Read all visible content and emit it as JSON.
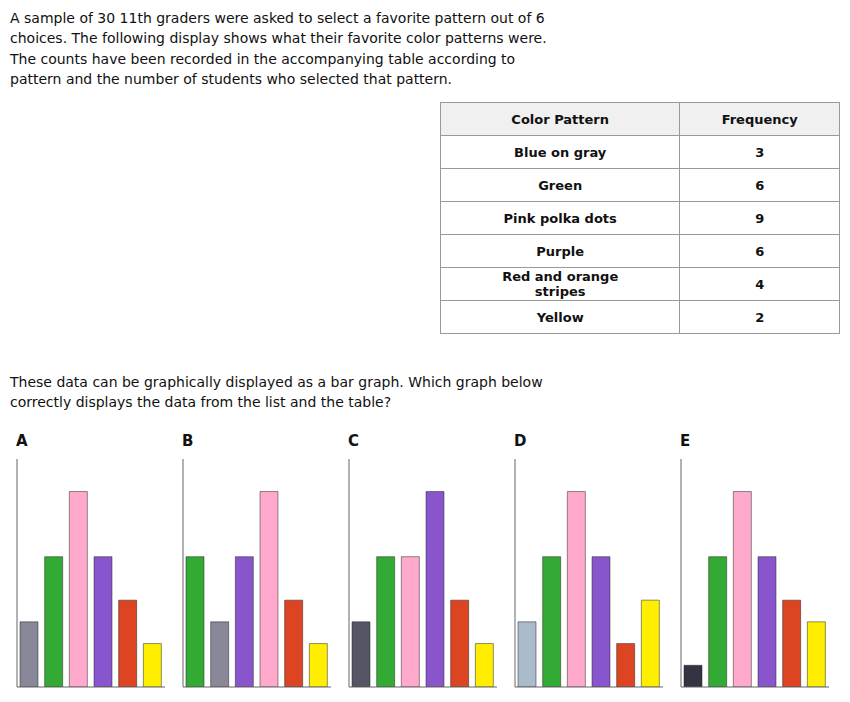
{
  "title": "A sample of 30 11th graders were asked to select a favorite pattern out of 6\nchoices. The following display shows what their favorite color patterns were.\nThe counts have been recorded in the accompanying table according to\npattern and the number of students who selected that pattern.",
  "annotations": [
    "These data can be graphically displayed as a bar graph. Which graph below\ncorrectly displays the data from the list and the table?"
  ],
  "table": {
    "header": [
      "Color Pattern",
      "Frequency"
    ],
    "rows": [
      [
        "Blue on gray",
        3
      ],
      [
        "Green",
        6
      ],
      [
        "Pink polka dots",
        9
      ],
      [
        "Purple",
        6
      ],
      [
        "Red and orange\nstripes",
        4
      ],
      [
        "Yellow",
        2
      ]
    ]
  },
  "chart_data": [
    {
      "type": "bar",
      "title": "A",
      "categories": [
        null,
        null,
        null,
        null,
        null,
        null
      ],
      "values": [
        3,
        6,
        9,
        6,
        4,
        2
      ],
      "colors": [
        "#888899",
        "#33aa33",
        "#ffaacc",
        "#8855cc",
        "#dd4422",
        "#ffee00"
      ],
      "ylim": [
        0,
        10.5
      ],
      "tick_labels": false,
      "grid": false
    },
    {
      "type": "bar",
      "title": "B",
      "categories": [
        null,
        null,
        null,
        null,
        null,
        null
      ],
      "values": [
        6,
        3,
        6,
        9,
        4,
        2
      ],
      "colors": [
        "#33aa33",
        "#888899",
        "#8855cc",
        "#ffaacc",
        "#dd4422",
        "#ffee00"
      ],
      "ylim": [
        0,
        10.5
      ],
      "tick_labels": false,
      "grid": false
    },
    {
      "type": "bar",
      "title": "C",
      "categories": [
        null,
        null,
        null,
        null,
        null,
        null
      ],
      "values": [
        3,
        6,
        6,
        9,
        4,
        2
      ],
      "colors": [
        "#555566",
        "#33aa33",
        "#ffaacc",
        "#8855cc",
        "#dd4422",
        "#ffee00"
      ],
      "ylim": [
        0,
        10.5
      ],
      "tick_labels": false,
      "grid": false
    },
    {
      "type": "bar",
      "title": "D",
      "categories": [
        null,
        null,
        null,
        null,
        null,
        null
      ],
      "values": [
        3,
        6,
        9,
        6,
        2,
        4
      ],
      "colors": [
        "#aabbcc",
        "#33aa33",
        "#ffaacc",
        "#8855cc",
        "#dd4422",
        "#ffee00"
      ],
      "ylim": [
        0,
        10.5
      ],
      "tick_labels": false,
      "grid": false
    },
    {
      "type": "bar",
      "title": "E",
      "categories": [
        null,
        null,
        null,
        null,
        null,
        null
      ],
      "values": [
        1,
        6,
        9,
        6,
        4,
        3
      ],
      "colors": [
        "#333344",
        "#33aa33",
        "#ffaacc",
        "#8855cc",
        "#dd4422",
        "#ffee00"
      ],
      "ylim": [
        0,
        10.5
      ],
      "tick_labels": false,
      "grid": false
    }
  ]
}
